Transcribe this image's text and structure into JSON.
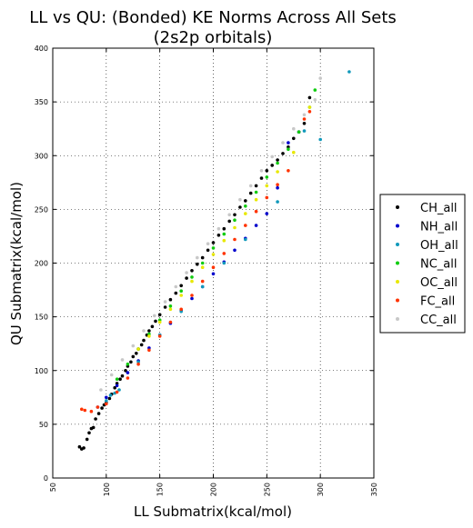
{
  "chart_data": {
    "type": "scatter",
    "title": "LL vs QU: (Bonded) KE Norms Across All Sets",
    "subtitle": "(2s2p orbitals)",
    "xlabel": "LL Submatrix(kcal/mol)",
    "ylabel": "QU Submatrix(kcal/mol)",
    "xlim": [
      50,
      350
    ],
    "ylim": [
      0,
      400
    ],
    "x_ticks": [
      "50",
      "100",
      "150",
      "200",
      "250",
      "300",
      "350"
    ],
    "y_ticks": [
      "0",
      "50",
      "100",
      "150",
      "200",
      "250",
      "300",
      "350",
      "400"
    ],
    "grid": true,
    "legend": "right",
    "series": [
      {
        "name": "CH_all",
        "color": "#000000",
        "x": [
          75,
          77,
          79,
          82,
          84,
          86,
          88,
          90,
          93,
          96,
          98,
          100,
          103,
          105,
          108,
          110,
          113,
          115,
          118,
          120,
          123,
          125,
          128,
          130,
          133,
          135,
          138,
          140,
          143,
          146,
          150,
          155,
          160,
          165,
          170,
          175,
          180,
          185,
          190,
          195,
          200,
          205,
          210,
          215,
          220,
          225,
          230,
          235,
          240,
          245,
          250,
          255,
          260,
          265,
          270,
          275,
          280,
          285,
          290
        ],
        "y": [
          29,
          27,
          28,
          36,
          42,
          46,
          47,
          55,
          60,
          65,
          68,
          70,
          74,
          78,
          84,
          88,
          92,
          95,
          100,
          104,
          108,
          113,
          116,
          120,
          124,
          128,
          133,
          137,
          141,
          146,
          152,
          159,
          166,
          172,
          179,
          186,
          193,
          199,
          205,
          212,
          219,
          226,
          232,
          239,
          245,
          252,
          258,
          265,
          272,
          279,
          286,
          291,
          296,
          302,
          308,
          316,
          322,
          330,
          354
        ]
      },
      {
        "name": "NH_all",
        "color": "#0000cc",
        "x": [
          92,
          100,
          110,
          120,
          130,
          140,
          150,
          160,
          170,
          180,
          190,
          200,
          210,
          220,
          230,
          240,
          250,
          260,
          270,
          280
        ],
        "y": [
          66,
          75,
          86,
          98,
          109,
          121,
          133,
          144,
          156,
          167,
          178,
          190,
          201,
          212,
          223,
          235,
          246,
          270,
          312,
          322
        ]
      },
      {
        "name": "OH_all",
        "color": "#1199bb",
        "x": [
          100,
          104,
          108,
          112,
          130,
          150,
          170,
          190,
          210,
          230,
          260,
          285,
          300,
          327
        ],
        "y": [
          72,
          77,
          79,
          82,
          108,
          133,
          155,
          178,
          200,
          222,
          257,
          323,
          315,
          378
        ]
      },
      {
        "name": "NC_all",
        "color": "#11cc11",
        "x": [
          110,
          120,
          130,
          140,
          150,
          160,
          170,
          180,
          190,
          200,
          210,
          220,
          230,
          240,
          250,
          260,
          270,
          280,
          290,
          295
        ],
        "y": [
          92,
          106,
          120,
          134,
          147,
          160,
          174,
          187,
          200,
          214,
          227,
          240,
          253,
          266,
          280,
          293,
          306,
          322,
          345,
          361
        ]
      },
      {
        "name": "OC_all",
        "color": "#e8e800",
        "x": [
          130,
          140,
          150,
          160,
          170,
          180,
          190,
          200,
          210,
          220,
          230,
          240,
          250,
          260,
          275,
          290
        ],
        "y": [
          120,
          132,
          145,
          157,
          170,
          183,
          196,
          208,
          221,
          233,
          246,
          259,
          272,
          285,
          303,
          345
        ]
      },
      {
        "name": "FC_all",
        "color": "#ff3300",
        "x": [
          77,
          80,
          86,
          92,
          100,
          110,
          120,
          130,
          140,
          150,
          160,
          170,
          180,
          190,
          200,
          210,
          220,
          230,
          240,
          250,
          260,
          270,
          285,
          290
        ],
        "y": [
          64,
          63,
          62,
          66,
          69,
          80,
          93,
          106,
          119,
          132,
          145,
          157,
          170,
          183,
          196,
          209,
          222,
          235,
          248,
          261,
          273,
          286,
          334,
          341
        ]
      },
      {
        "name": "CC_all",
        "color": "#c8c8c8",
        "x": [
          95,
          105,
          115,
          125,
          135,
          145,
          155,
          165,
          175,
          185,
          195,
          205,
          215,
          225,
          235,
          245,
          255,
          265,
          275,
          285,
          295,
          300
        ],
        "y": [
          82,
          96,
          110,
          123,
          137,
          151,
          164,
          178,
          191,
          205,
          218,
          232,
          245,
          259,
          272,
          286,
          299,
          312,
          325,
          338,
          352,
          372
        ]
      }
    ]
  }
}
